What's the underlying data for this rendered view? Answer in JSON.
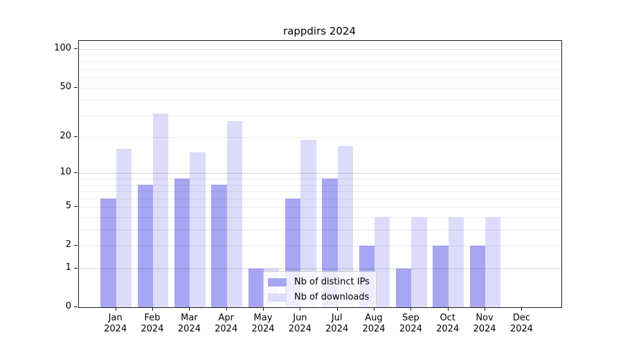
{
  "title": "rappdirs 2024",
  "chart_data": {
    "type": "bar",
    "title": "rappdirs 2024",
    "categories": [
      "Jan",
      "Feb",
      "Mar",
      "Apr",
      "May",
      "Jun",
      "Jul",
      "Aug",
      "Sep",
      "Oct",
      "Nov",
      "Dec"
    ],
    "x_tick_year": "2024",
    "series": [
      {
        "name": "Nb of distinct IPs",
        "color": "#a6a6f2",
        "values": [
          6,
          8,
          9,
          8,
          1,
          6,
          9,
          2,
          1,
          2,
          2,
          0
        ]
      },
      {
        "name": "Nb of downloads",
        "color": "#dcdcfa",
        "values": [
          16,
          31,
          15,
          27,
          1,
          19,
          17,
          4,
          4,
          4,
          4,
          0
        ]
      }
    ],
    "y_axis": {
      "scale": "log10(1+value)",
      "range": [
        0,
        110
      ],
      "tick_labels": [
        "100",
        "50",
        "20",
        "10",
        "5",
        "2",
        "1",
        "0"
      ],
      "tick_values": [
        100,
        50,
        20,
        10,
        5,
        2,
        1,
        0
      ],
      "major_gridlines": [
        1,
        10,
        100
      ],
      "minor_gridlines": [
        2,
        3,
        4,
        5,
        6,
        7,
        8,
        9,
        20,
        30,
        40,
        50,
        60,
        70,
        80,
        90
      ]
    },
    "legend": {
      "entries": [
        "Nb of distinct IPs",
        "Nb of downloads"
      ],
      "location": "lower-center"
    },
    "grid": true
  },
  "colors": {
    "bar_distinct_ips": "#a6a6f2",
    "bar_downloads": "#dcdcfa",
    "axis": "#1a1a1a",
    "grid_minor": "rgba(0,0,0,0.07)",
    "grid_major": "rgba(0,0,0,0.16)",
    "legend_bg": "rgba(255,255,255,0.8)",
    "legend_border": "#d0d0d0"
  }
}
